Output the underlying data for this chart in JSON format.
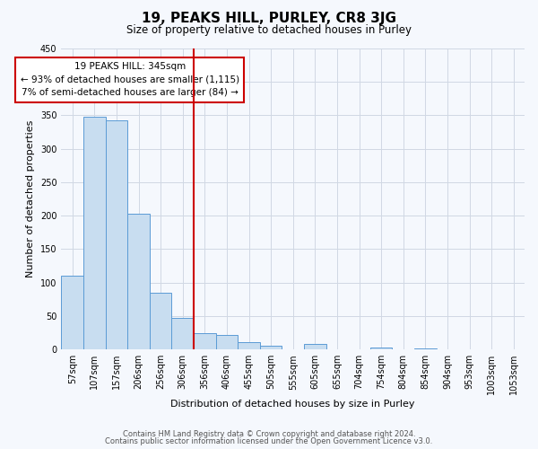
{
  "title": "19, PEAKS HILL, PURLEY, CR8 3JG",
  "subtitle": "Size of property relative to detached houses in Purley",
  "xlabel": "Distribution of detached houses by size in Purley",
  "ylabel": "Number of detached properties",
  "footnote1": "Contains HM Land Registry data © Crown copyright and database right 2024.",
  "footnote2": "Contains public sector information licensed under the Open Government Licence v3.0.",
  "bin_labels": [
    "57sqm",
    "107sqm",
    "157sqm",
    "206sqm",
    "256sqm",
    "306sqm",
    "356sqm",
    "406sqm",
    "455sqm",
    "505sqm",
    "555sqm",
    "605sqm",
    "655sqm",
    "704sqm",
    "754sqm",
    "804sqm",
    "854sqm",
    "904sqm",
    "953sqm",
    "1003sqm",
    "1053sqm"
  ],
  "bar_values": [
    110,
    348,
    343,
    203,
    85,
    47,
    25,
    22,
    11,
    5,
    0,
    8,
    0,
    0,
    3,
    0,
    2,
    0,
    0,
    0,
    0
  ],
  "bar_color": "#c8ddf0",
  "bar_edge_color": "#5b9bd5",
  "vline_x": 5.5,
  "vline_color": "#cc0000",
  "ylim": [
    0,
    450
  ],
  "yticks": [
    0,
    50,
    100,
    150,
    200,
    250,
    300,
    350,
    400,
    450
  ],
  "annotation_text": "19 PEAKS HILL: 345sqm\n← 93% of detached houses are smaller (1,115)\n7% of semi-detached houses are larger (84) →",
  "annotation_box_color": "#ffffff",
  "annotation_box_edge": "#cc0000",
  "grid_color": "#d0d8e4",
  "bg_color": "#f5f8fd",
  "title_fontsize": 11,
  "subtitle_fontsize": 8.5,
  "ylabel_fontsize": 8,
  "xlabel_fontsize": 8,
  "tick_fontsize": 7,
  "annot_fontsize": 7.5,
  "footnote_fontsize": 6
}
